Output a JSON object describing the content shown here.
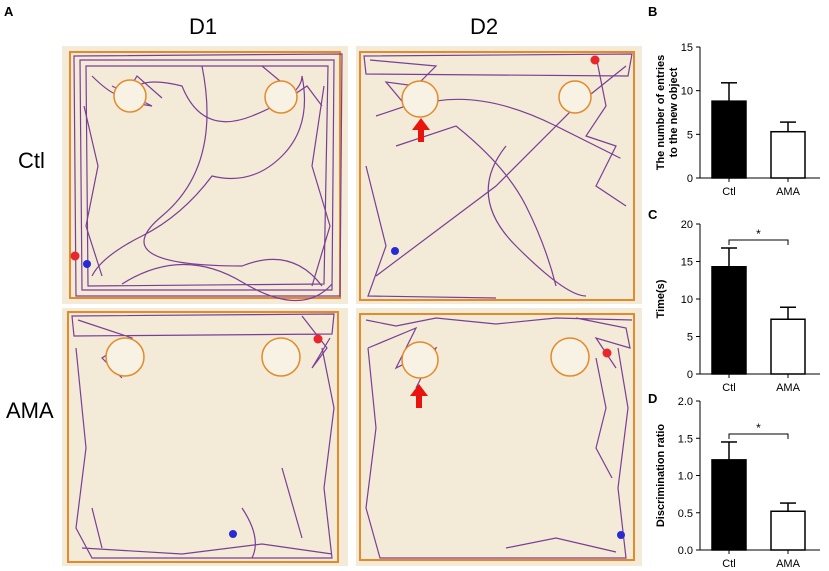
{
  "panel_labels": {
    "a": "A",
    "b": "B",
    "c": "C",
    "d": "D"
  },
  "columns": [
    "D1",
    "D2"
  ],
  "rows": [
    "Ctl",
    "AMA"
  ],
  "colors": {
    "arena_bg": "#f3ead8",
    "arena_border": "#e58a2a",
    "track": "#7a3f95",
    "marker_start": "#e8262b",
    "marker_end": "#2a2ad4",
    "arrow": "#e8150f",
    "bar_ctl": "#000000",
    "bar_ama": "#ffffff"
  },
  "chart_data": [
    {
      "panel": "B",
      "type": "bar",
      "categories": [
        "Ctl",
        "AMA"
      ],
      "values": [
        8.8,
        5.3
      ],
      "errors": [
        2.1,
        1.1
      ],
      "ylabel": "The number of entries\nto the new object",
      "ylim": [
        0,
        15
      ],
      "yticks": [
        0,
        5,
        10,
        15
      ],
      "significance": null
    },
    {
      "panel": "C",
      "type": "bar",
      "categories": [
        "Ctl",
        "AMA"
      ],
      "values": [
        14.3,
        7.3
      ],
      "errors": [
        2.5,
        1.6
      ],
      "ylabel": "Time(s)",
      "ylim": [
        0,
        20
      ],
      "yticks": [
        0,
        5,
        10,
        15,
        20
      ],
      "significance": "*"
    },
    {
      "panel": "D",
      "type": "bar",
      "categories": [
        "Ctl",
        "AMA"
      ],
      "values": [
        1.21,
        0.52
      ],
      "errors": [
        0.24,
        0.11
      ],
      "ylabel": "Discrimination ratio",
      "ylim": [
        0,
        2.0
      ],
      "yticks": [
        "0.0",
        "0.5",
        "1.0",
        "1.5",
        "2.0"
      ],
      "significance": "*"
    }
  ]
}
